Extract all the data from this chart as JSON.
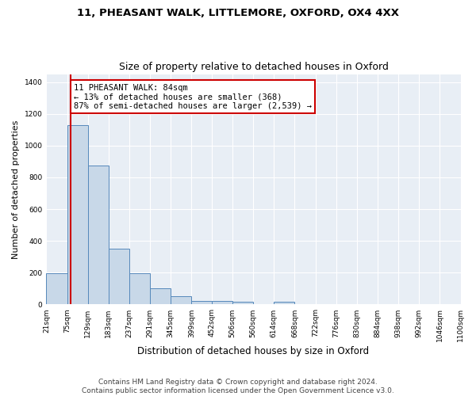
{
  "title1": "11, PHEASANT WALK, LITTLEMORE, OXFORD, OX4 4XX",
  "title2": "Size of property relative to detached houses in Oxford",
  "xlabel": "Distribution of detached houses by size in Oxford",
  "ylabel": "Number of detached properties",
  "bar_edges": [
    21,
    75,
    129,
    183,
    237,
    291,
    345,
    399,
    452,
    506,
    560,
    614,
    668,
    722,
    776,
    830,
    884,
    938,
    992,
    1046,
    1100
  ],
  "bar_heights": [
    195,
    1130,
    875,
    350,
    195,
    100,
    50,
    20,
    20,
    15,
    0,
    15,
    0,
    0,
    0,
    0,
    0,
    0,
    0,
    0
  ],
  "bar_color": "#c8d8e8",
  "bar_edge_color": "#5588bb",
  "property_size": 84,
  "property_line_color": "#cc0000",
  "annotation_text": "11 PHEASANT WALK: 84sqm\n← 13% of detached houses are smaller (368)\n87% of semi-detached houses are larger (2,539) →",
  "annotation_box_color": "#ffffff",
  "annotation_box_edge_color": "#cc0000",
  "ylim": [
    0,
    1450
  ],
  "yticks": [
    0,
    200,
    400,
    600,
    800,
    1000,
    1200,
    1400
  ],
  "background_color": "#e8eef5",
  "fig_background_color": "#ffffff",
  "footer_text": "Contains HM Land Registry data © Crown copyright and database right 2024.\nContains public sector information licensed under the Open Government Licence v3.0.",
  "title1_fontsize": 9.5,
  "title2_fontsize": 9,
  "xlabel_fontsize": 8.5,
  "ylabel_fontsize": 8,
  "annotation_fontsize": 7.5,
  "footer_fontsize": 6.5,
  "tick_fontsize": 6.5
}
